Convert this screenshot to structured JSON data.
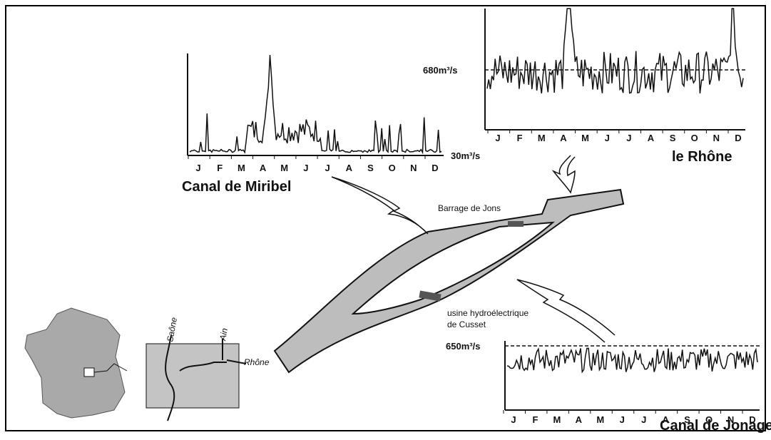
{
  "charts": [
    {
      "title": "Canal de Miribel",
      "reference": "30m³/s",
      "months": [
        "J",
        "F",
        "M",
        "A",
        "M",
        "J",
        "J",
        "A",
        "S",
        "O",
        "N",
        "D"
      ]
    },
    {
      "title": "le Rhône",
      "reference": "680m³/s",
      "months": [
        "J",
        "F",
        "M",
        "A",
        "M",
        "J",
        "J",
        "A",
        "S",
        "O",
        "N",
        "D"
      ]
    },
    {
      "title": "Canal de Jonage",
      "reference": "650m³/s",
      "months": [
        "J",
        "F",
        "M",
        "A",
        "M",
        "J",
        "J",
        "A",
        "S",
        "O",
        "N",
        "D"
      ]
    }
  ],
  "labels": {
    "dam": "Barrage de Jons",
    "plant_line1": "usine hydroélectrique",
    "plant_line2": "de Cusset"
  },
  "map": {
    "river1": "Saône",
    "river2": "Ain",
    "river3": "Rhône"
  }
}
